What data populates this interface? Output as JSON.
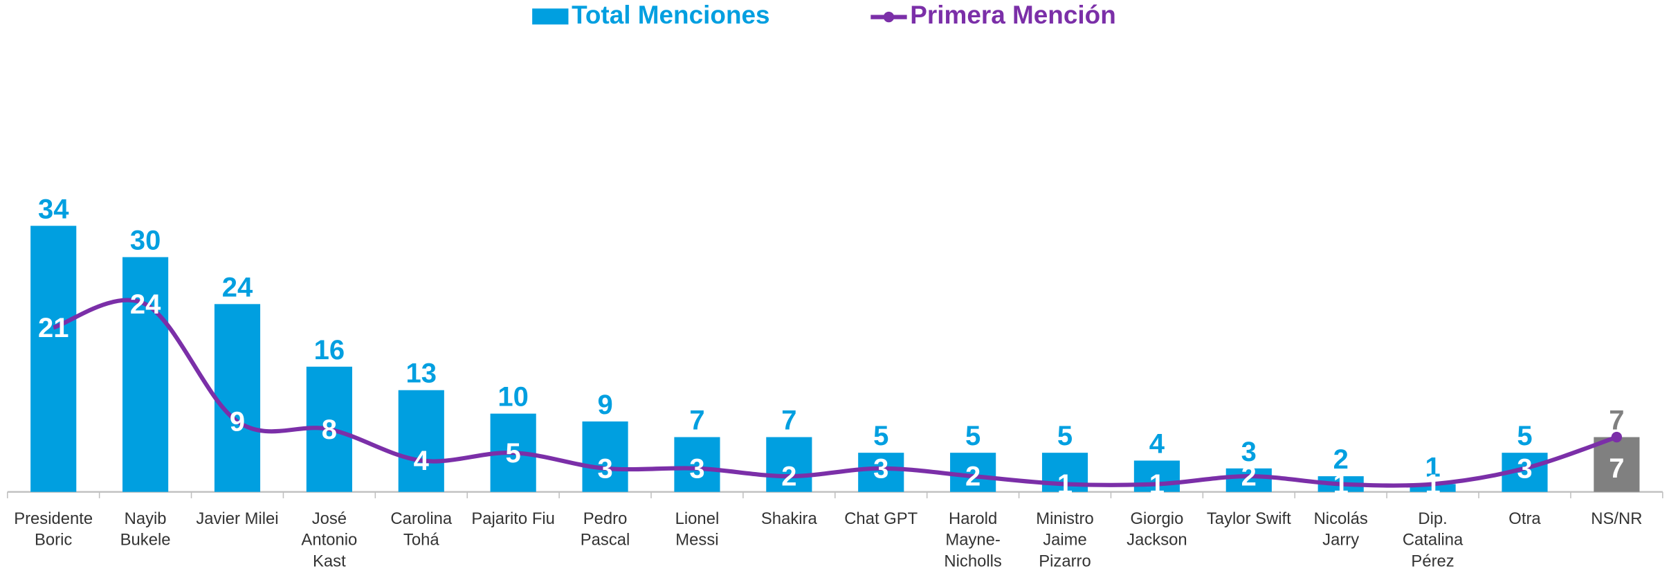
{
  "chart_data": {
    "type": "bar",
    "categories": [
      "Presidente Boric",
      "Nayib Bukele",
      "Javier Milei",
      "José Antonio Kast",
      "Carolina Tohá",
      "Pajarito Fiu",
      "Pedro Pascal",
      "Lionel Messi",
      "Shakira",
      "Chat GPT",
      "Harold Mayne-Nicholls",
      "Ministro Jaime Pizarro",
      "Giorgio Jackson",
      "Taylor Swift",
      "Nicolás Jarry",
      "Dip. Catalina Pérez",
      "Otra",
      "NS/NR"
    ],
    "series": [
      {
        "name": "Total Menciones",
        "type": "bar",
        "color": "#009fe0",
        "colors": [
          "#009fe0",
          "#009fe0",
          "#009fe0",
          "#009fe0",
          "#009fe0",
          "#009fe0",
          "#009fe0",
          "#009fe0",
          "#009fe0",
          "#009fe0",
          "#009fe0",
          "#009fe0",
          "#009fe0",
          "#009fe0",
          "#009fe0",
          "#009fe0",
          "#009fe0",
          "#808080"
        ],
        "values": [
          34,
          30,
          24,
          16,
          13,
          10,
          9,
          7,
          7,
          5,
          5,
          5,
          4,
          3,
          2,
          1,
          5,
          7
        ]
      },
      {
        "name": "Primera Mención",
        "type": "line",
        "color": "#7b2fa8",
        "values": [
          21,
          24,
          9,
          8,
          4,
          5,
          3,
          3,
          2,
          3,
          2,
          1,
          1,
          2,
          1,
          1,
          3,
          7
        ]
      }
    ],
    "ylim": [
      0,
      40
    ]
  }
}
